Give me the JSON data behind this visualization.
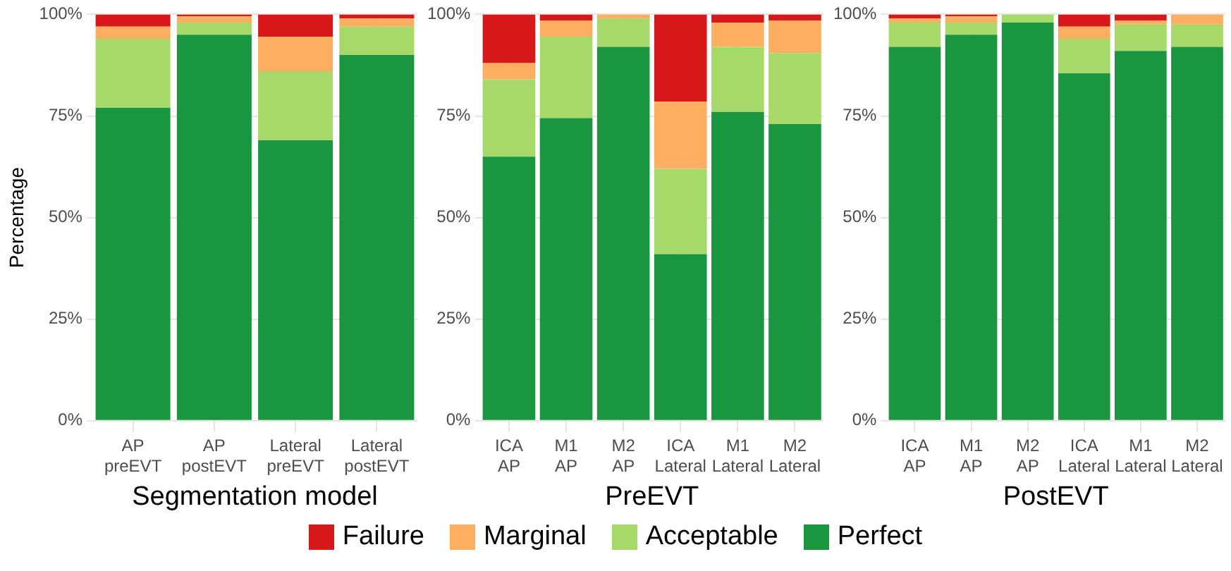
{
  "chart_data": [
    {
      "type": "bar",
      "stacked": true,
      "xlabel": "Segmentation model",
      "ylabel": "Percentage",
      "categories": [
        "AP preEVT",
        "AP postEVT",
        "Lateral preEVT",
        "Lateral postEVT"
      ],
      "series": [
        {
          "name": "Perfect",
          "color": "#1a9641",
          "values": [
            77,
            95,
            69,
            90
          ]
        },
        {
          "name": "Acceptable",
          "color": "#a6d96a",
          "values": [
            17,
            3,
            17,
            7
          ]
        },
        {
          "name": "Marginal",
          "color": "#fdae61",
          "values": [
            3,
            1.5,
            8.5,
            2
          ]
        },
        {
          "name": "Failure",
          "color": "#d7191c",
          "values": [
            3,
            0.5,
            5.5,
            1
          ]
        }
      ],
      "ylim": [
        0,
        100
      ],
      "yticks": [
        {
          "value": 0,
          "label": "0%"
        },
        {
          "value": 25,
          "label": "25%"
        },
        {
          "value": 50,
          "label": "50%"
        },
        {
          "value": 75,
          "label": "75%"
        },
        {
          "value": 100,
          "label": "100%"
        }
      ],
      "grid": true,
      "legend": "bottom"
    },
    {
      "type": "bar",
      "stacked": true,
      "xlabel": "PreEVT",
      "categories": [
        "ICA AP",
        "M1 AP",
        "M2 AP",
        "ICA Lateral",
        "M1 Lateral",
        "M2 Lateral"
      ],
      "series": [
        {
          "color": "#1a9641",
          "values": [
            65,
            74.5,
            92,
            41,
            76,
            73
          ]
        },
        {
          "color": "#a6d96a",
          "values": [
            19,
            20,
            7,
            21,
            16,
            17.5
          ]
        },
        {
          "color": "#fdae61",
          "values": [
            4,
            4,
            1,
            16.5,
            6,
            8
          ]
        },
        {
          "color": "#d7191c",
          "values": [
            12,
            1.5,
            0,
            21.5,
            2,
            1.5
          ]
        }
      ],
      "ylim": [
        0,
        100
      ],
      "yticks": [
        {
          "value": 0,
          "label": "0%"
        },
        {
          "value": 25,
          "label": "25%"
        },
        {
          "value": 50,
          "label": "50%"
        },
        {
          "value": 75,
          "label": "75%"
        },
        {
          "value": 100,
          "label": "100%"
        }
      ],
      "grid": true
    },
    {
      "type": "bar",
      "stacked": true,
      "xlabel": "PostEVT",
      "categories": [
        "ICA AP",
        "M1 AP",
        "M2 AP",
        "ICA Lateral",
        "M1 Lateral",
        "M2 Lateral"
      ],
      "series": [
        {
          "color": "#1a9641",
          "values": [
            92,
            95,
            98,
            85.5,
            91,
            92
          ]
        },
        {
          "color": "#a6d96a",
          "values": [
            6,
            3,
            2,
            8.5,
            6.5,
            5.5
          ]
        },
        {
          "color": "#fdae61",
          "values": [
            1,
            1.5,
            0,
            3,
            1,
            2.5
          ]
        },
        {
          "color": "#d7191c",
          "values": [
            1,
            0.5,
            0,
            3,
            1.5,
            0
          ]
        }
      ],
      "ylim": [
        0,
        100
      ],
      "yticks": [
        {
          "value": 0,
          "label": "0%"
        },
        {
          "value": 25,
          "label": "25%"
        },
        {
          "value": 50,
          "label": "50%"
        },
        {
          "value": 75,
          "label": "75%"
        },
        {
          "value": 100,
          "label": "100%"
        }
      ],
      "grid": true
    }
  ]
}
